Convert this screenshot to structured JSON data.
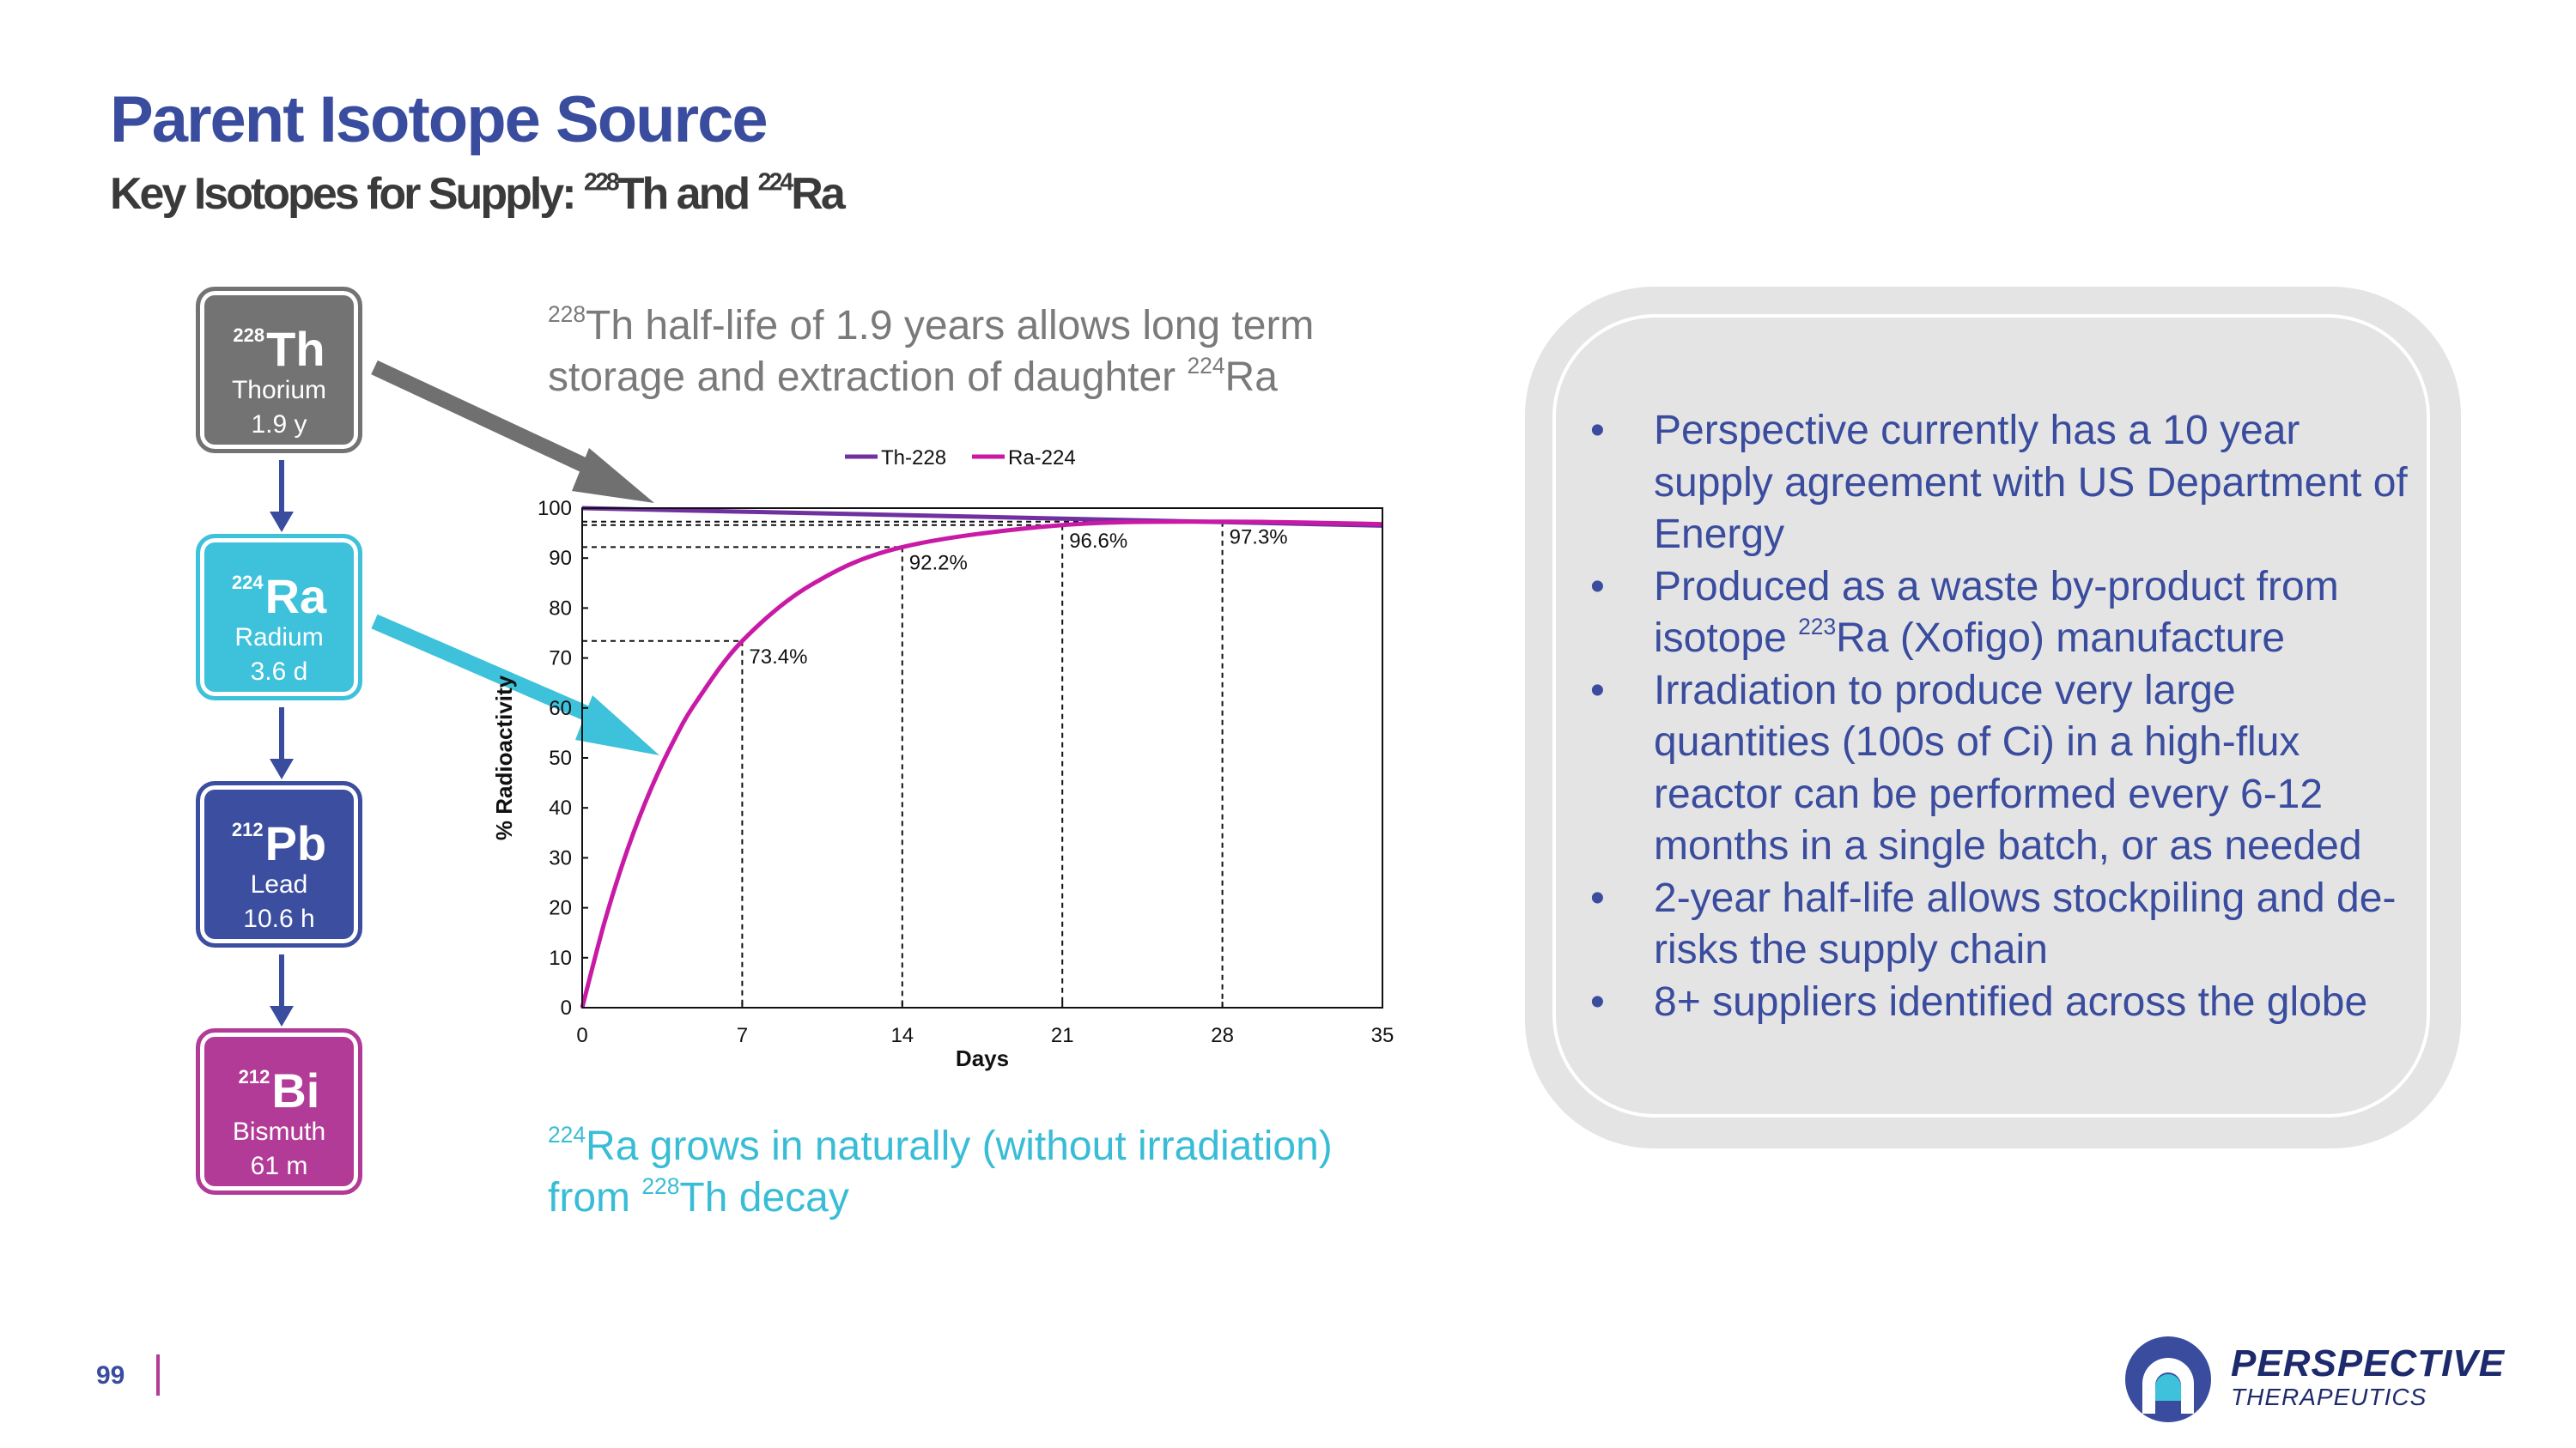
{
  "header": {
    "title": "Parent Isotope Source",
    "subtitle_prefix": "Key Isotopes for Supply: ",
    "subtitle_th_mass": "228",
    "subtitle_th_symbol": "Th",
    "subtitle_and": " and ",
    "subtitle_ra_mass": "224",
    "subtitle_ra_symbol": "Ra"
  },
  "isotopes": [
    {
      "mass": "228",
      "symbol": "Th",
      "name": "Thorium",
      "half_life": "1.9 y",
      "color": "#737373"
    },
    {
      "mass": "224",
      "symbol": "Ra",
      "name": "Radium",
      "half_life": "3.6 d",
      "color": "#3ec1da"
    },
    {
      "mass": "212",
      "symbol": "Pb",
      "name": "Lead",
      "half_life": "10.6 h",
      "color": "#3c4e9f"
    },
    {
      "mass": "212",
      "symbol": "Bi",
      "name": "Bismuth",
      "half_life": "61 m",
      "color": "#b23b97"
    }
  ],
  "captions": {
    "top_mass": "228",
    "top_text_1": "Th half-life of 1.9 years allows long term storage and extraction of daughter ",
    "top_mass_2": "224",
    "top_text_2": "Ra",
    "bottom_mass": "224",
    "bottom_text_1": "Ra grows in naturally (without irradiation) from ",
    "bottom_mass_2": "228",
    "bottom_text_2": "Th decay"
  },
  "chart_data": {
    "type": "line",
    "xlabel": "Days",
    "ylabel": "% Radioactivity",
    "xlim": [
      0,
      35
    ],
    "ylim": [
      0,
      100
    ],
    "xticks": [
      "0",
      "7",
      "14",
      "21",
      "28",
      "35"
    ],
    "yticks": [
      "0",
      "10",
      "20",
      "30",
      "40",
      "50",
      "60",
      "70",
      "80",
      "90",
      "100"
    ],
    "legend_position": "top",
    "series": [
      {
        "name": "Th-228",
        "color": "#7030a0",
        "x": [
          0,
          7,
          14,
          21,
          28,
          35
        ],
        "y": [
          100,
          99.3,
          98.6,
          97.9,
          97.2,
          96.5
        ]
      },
      {
        "name": "Ra-224",
        "color": "#c91aa6",
        "x": [
          0,
          1,
          2,
          3,
          4,
          5,
          7,
          10,
          14,
          21,
          28,
          35
        ],
        "y": [
          0,
          17.5,
          31.9,
          43.7,
          53.4,
          61.3,
          73.4,
          84.6,
          92.2,
          96.6,
          97.3,
          96.8
        ]
      }
    ],
    "annotations": [
      {
        "x": 7,
        "y": 73.4,
        "label": "73.4%"
      },
      {
        "x": 14,
        "y": 92.2,
        "label": "92.2%"
      },
      {
        "x": 21,
        "y": 96.6,
        "label": "96.6%"
      },
      {
        "x": 28,
        "y": 97.3,
        "label": "97.3%"
      }
    ]
  },
  "bullets": [
    {
      "text": "Perspective currently has a 10 year supply agreement with US Department of Energy"
    },
    {
      "text_1": "Produced as a waste by-product from isotope ",
      "mass": "223",
      "text_2": "Ra (Xofigo) manufacture"
    },
    {
      "text": "Irradiation to produce very large quantities (100s of Ci) in a high-flux reactor can be performed every 6-12 months in a single batch, or as needed"
    },
    {
      "text": "2-year half-life allows stockpiling and de-risks the supply chain"
    },
    {
      "text": "8+ suppliers identified across the globe"
    }
  ],
  "bullet_symbol": "•",
  "footer": {
    "page_number": "99",
    "logo_name": "PERSPECTIVE",
    "logo_sub": "THERAPEUTICS"
  },
  "colors": {
    "title": "#3a4c9e",
    "accent_cyan": "#3ec1da",
    "accent_magenta": "#b23b97",
    "arrow_gray": "#707070",
    "info_bg": "#e4e4e4"
  }
}
